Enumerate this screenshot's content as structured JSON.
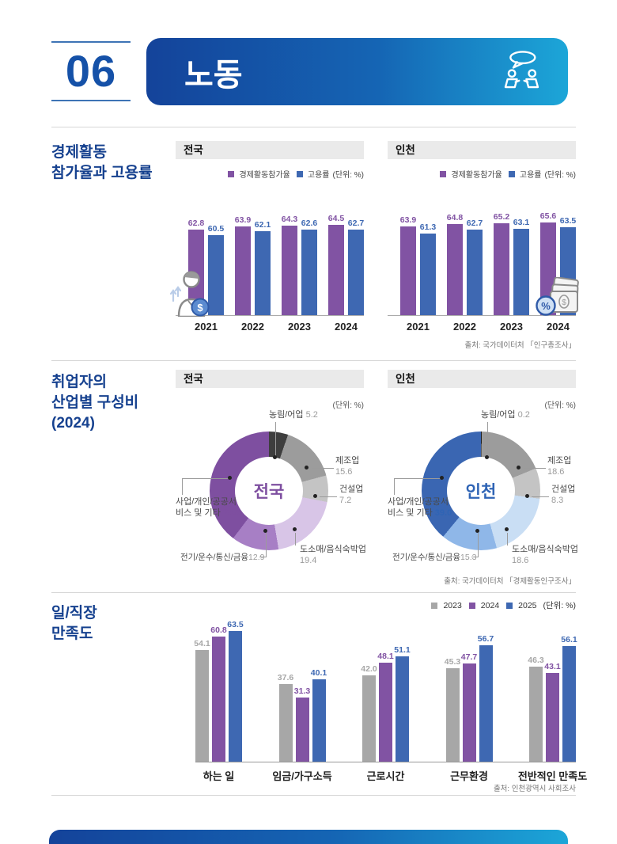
{
  "header": {
    "number": "06",
    "title": "노동"
  },
  "colors": {
    "navy": "#16418F",
    "banner_start": "#14439A",
    "banner_end": "#1CA6D8",
    "purple": "#8153A3",
    "blue": "#3E68B2",
    "gray": "#A7A7A7",
    "panel_header_bg": "#EAEAEA"
  },
  "sections": {
    "s1": {
      "title_lines": [
        "경제활동",
        "참가율과 고용률"
      ],
      "regions": [
        "전국",
        "인천"
      ],
      "legend": [
        "경제활동참가율",
        "고용률"
      ],
      "unit": "(단위: %)",
      "source": "출처: 국가데이터처 「인구총조사」"
    },
    "s2": {
      "title_lines": [
        "취업자의",
        "산업별 구성비",
        "(2024)"
      ],
      "regions": [
        "전국",
        "인천"
      ],
      "unit": "(단위: %)",
      "source": "출처: 국가데이터처 「경제활동인구조사」"
    },
    "s3": {
      "title_lines": [
        "일/직장",
        "만족도"
      ],
      "legend": [
        "2023",
        "2024",
        "2025"
      ],
      "unit": "(단위: %)",
      "source": "출처: 인천광역시 사회조사"
    }
  },
  "chart_data": [
    {
      "type": "bar",
      "title": "경제활동참가율과 고용률 — 전국",
      "categories": [
        "2021",
        "2022",
        "2023",
        "2024"
      ],
      "series": [
        {
          "name": "경제활동참가율",
          "values": [
            62.8,
            63.9,
            64.3,
            64.5
          ]
        },
        {
          "name": "고용률",
          "values": [
            60.5,
            62.1,
            62.6,
            62.7
          ]
        }
      ],
      "colors": [
        "#8153A3",
        "#3E68B2"
      ],
      "unit": "%"
    },
    {
      "type": "bar",
      "title": "경제활동참가율과 고용률 — 인천",
      "categories": [
        "2021",
        "2022",
        "2023",
        "2024"
      ],
      "series": [
        {
          "name": "경제활동참가율",
          "values": [
            63.9,
            64.8,
            65.2,
            65.6
          ]
        },
        {
          "name": "고용률",
          "values": [
            61.3,
            62.7,
            63.1,
            63.5
          ]
        }
      ],
      "colors": [
        "#8153A3",
        "#3E68B2"
      ],
      "unit": "%"
    },
    {
      "type": "pie",
      "title": "취업자의 산업별 구성비 (2024) — 전국",
      "labels": [
        "농림/어업",
        "제조업",
        "건설업",
        "도소매/음식숙박업",
        "전기/운수/통신/금융",
        "사업/개인/공공서비스 및 기타"
      ],
      "values": [
        5.2,
        15.6,
        7.2,
        19.4,
        12.9,
        39.6
      ],
      "colors": [
        "#3E3E3E",
        "#9C9C9C",
        "#C4C4C4",
        "#D8C5E7",
        "#A77FC5",
        "#7E4FA0"
      ],
      "accent": "#7E4FA0",
      "unit": "%"
    },
    {
      "type": "pie",
      "title": "취업자의 산업별 구성비 (2024) — 인천",
      "labels": [
        "농림/어업",
        "제조업",
        "건설업",
        "도소매/음식숙박업",
        "전기/운수/통신/금융",
        "사업/개인/공공서비스 및 기타"
      ],
      "values": [
        0.2,
        18.6,
        8.3,
        18.6,
        15.3,
        39.0
      ],
      "colors": [
        "#1F1F1F",
        "#9C9C9C",
        "#C4C4C4",
        "#C9DEF4",
        "#8FB7E8",
        "#3A66B2"
      ],
      "accent": "#2F64B5",
      "unit": "%"
    },
    {
      "type": "bar",
      "title": "일/직장 만족도",
      "categories": [
        "하는 일",
        "임금/가구소득",
        "근로시간",
        "근무환경",
        "전반적인 만족도"
      ],
      "series": [
        {
          "name": "2023",
          "values": [
            54.1,
            37.6,
            42.0,
            45.3,
            46.3
          ]
        },
        {
          "name": "2024",
          "values": [
            60.8,
            31.3,
            48.1,
            47.7,
            43.1
          ]
        },
        {
          "name": "2025",
          "values": [
            63.5,
            40.1,
            51.1,
            56.7,
            56.1
          ]
        }
      ],
      "colors": [
        "#A7A7A7",
        "#8153A3",
        "#3E68B2"
      ],
      "unit": "%"
    }
  ]
}
